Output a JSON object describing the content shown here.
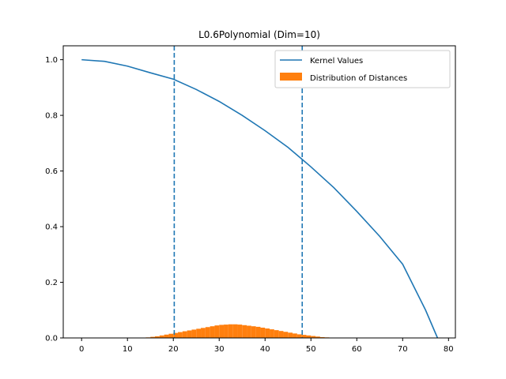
{
  "chart_data": {
    "type": "line",
    "title": "L0.6Polynomial (Dim=10)",
    "xlabel": "",
    "ylabel": "",
    "xlim": [
      -4,
      81.5
    ],
    "ylim": [
      0.0,
      1.05
    ],
    "x_ticks": [
      0,
      10,
      20,
      30,
      40,
      50,
      60,
      70,
      80
    ],
    "y_ticks": [
      0.0,
      0.2,
      0.4,
      0.6,
      0.8,
      1.0
    ],
    "x_tick_labels": [
      "0",
      "10",
      "20",
      "30",
      "40",
      "50",
      "60",
      "70",
      "80"
    ],
    "y_tick_labels": [
      "0.0",
      "0.2",
      "0.4",
      "0.6",
      "0.8",
      "1.0"
    ],
    "grid": false,
    "legend_placement": "upper right",
    "legend_entries": [
      "Kernel Values",
      "Distribution of Distances"
    ],
    "colors": {
      "line": "#1f77b4",
      "histogram": "#ff7f0e",
      "vlines": "#1f77b4"
    },
    "series": [
      {
        "name": "Kernel Values",
        "type": "line",
        "x": [
          0,
          5,
          10,
          15,
          20,
          25,
          30,
          35,
          40,
          45,
          50,
          55,
          60,
          65,
          70,
          75,
          77.6
        ],
        "y": [
          1.0,
          0.994,
          0.977,
          0.953,
          0.93,
          0.893,
          0.85,
          0.8,
          0.745,
          0.685,
          0.615,
          0.54,
          0.455,
          0.365,
          0.265,
          0.1,
          0.0
        ]
      },
      {
        "name": "Distribution of Distances",
        "type": "histogram",
        "bin_width": 1,
        "x": [
          14,
          15,
          16,
          17,
          18,
          19,
          20,
          21,
          22,
          23,
          24,
          25,
          26,
          27,
          28,
          29,
          30,
          31,
          32,
          33,
          34,
          35,
          36,
          37,
          38,
          39,
          40,
          41,
          42,
          43,
          44,
          45,
          46,
          47,
          48,
          49,
          50,
          51,
          52,
          53,
          54
        ],
        "y": [
          0.002,
          0.004,
          0.006,
          0.009,
          0.012,
          0.015,
          0.018,
          0.021,
          0.024,
          0.027,
          0.03,
          0.033,
          0.036,
          0.039,
          0.042,
          0.045,
          0.047,
          0.048,
          0.049,
          0.049,
          0.048,
          0.046,
          0.044,
          0.042,
          0.04,
          0.037,
          0.034,
          0.031,
          0.028,
          0.025,
          0.022,
          0.019,
          0.016,
          0.013,
          0.011,
          0.009,
          0.007,
          0.005,
          0.003,
          0.002,
          0.001
        ]
      }
    ],
    "vlines": [
      20.2,
      48.1
    ]
  }
}
